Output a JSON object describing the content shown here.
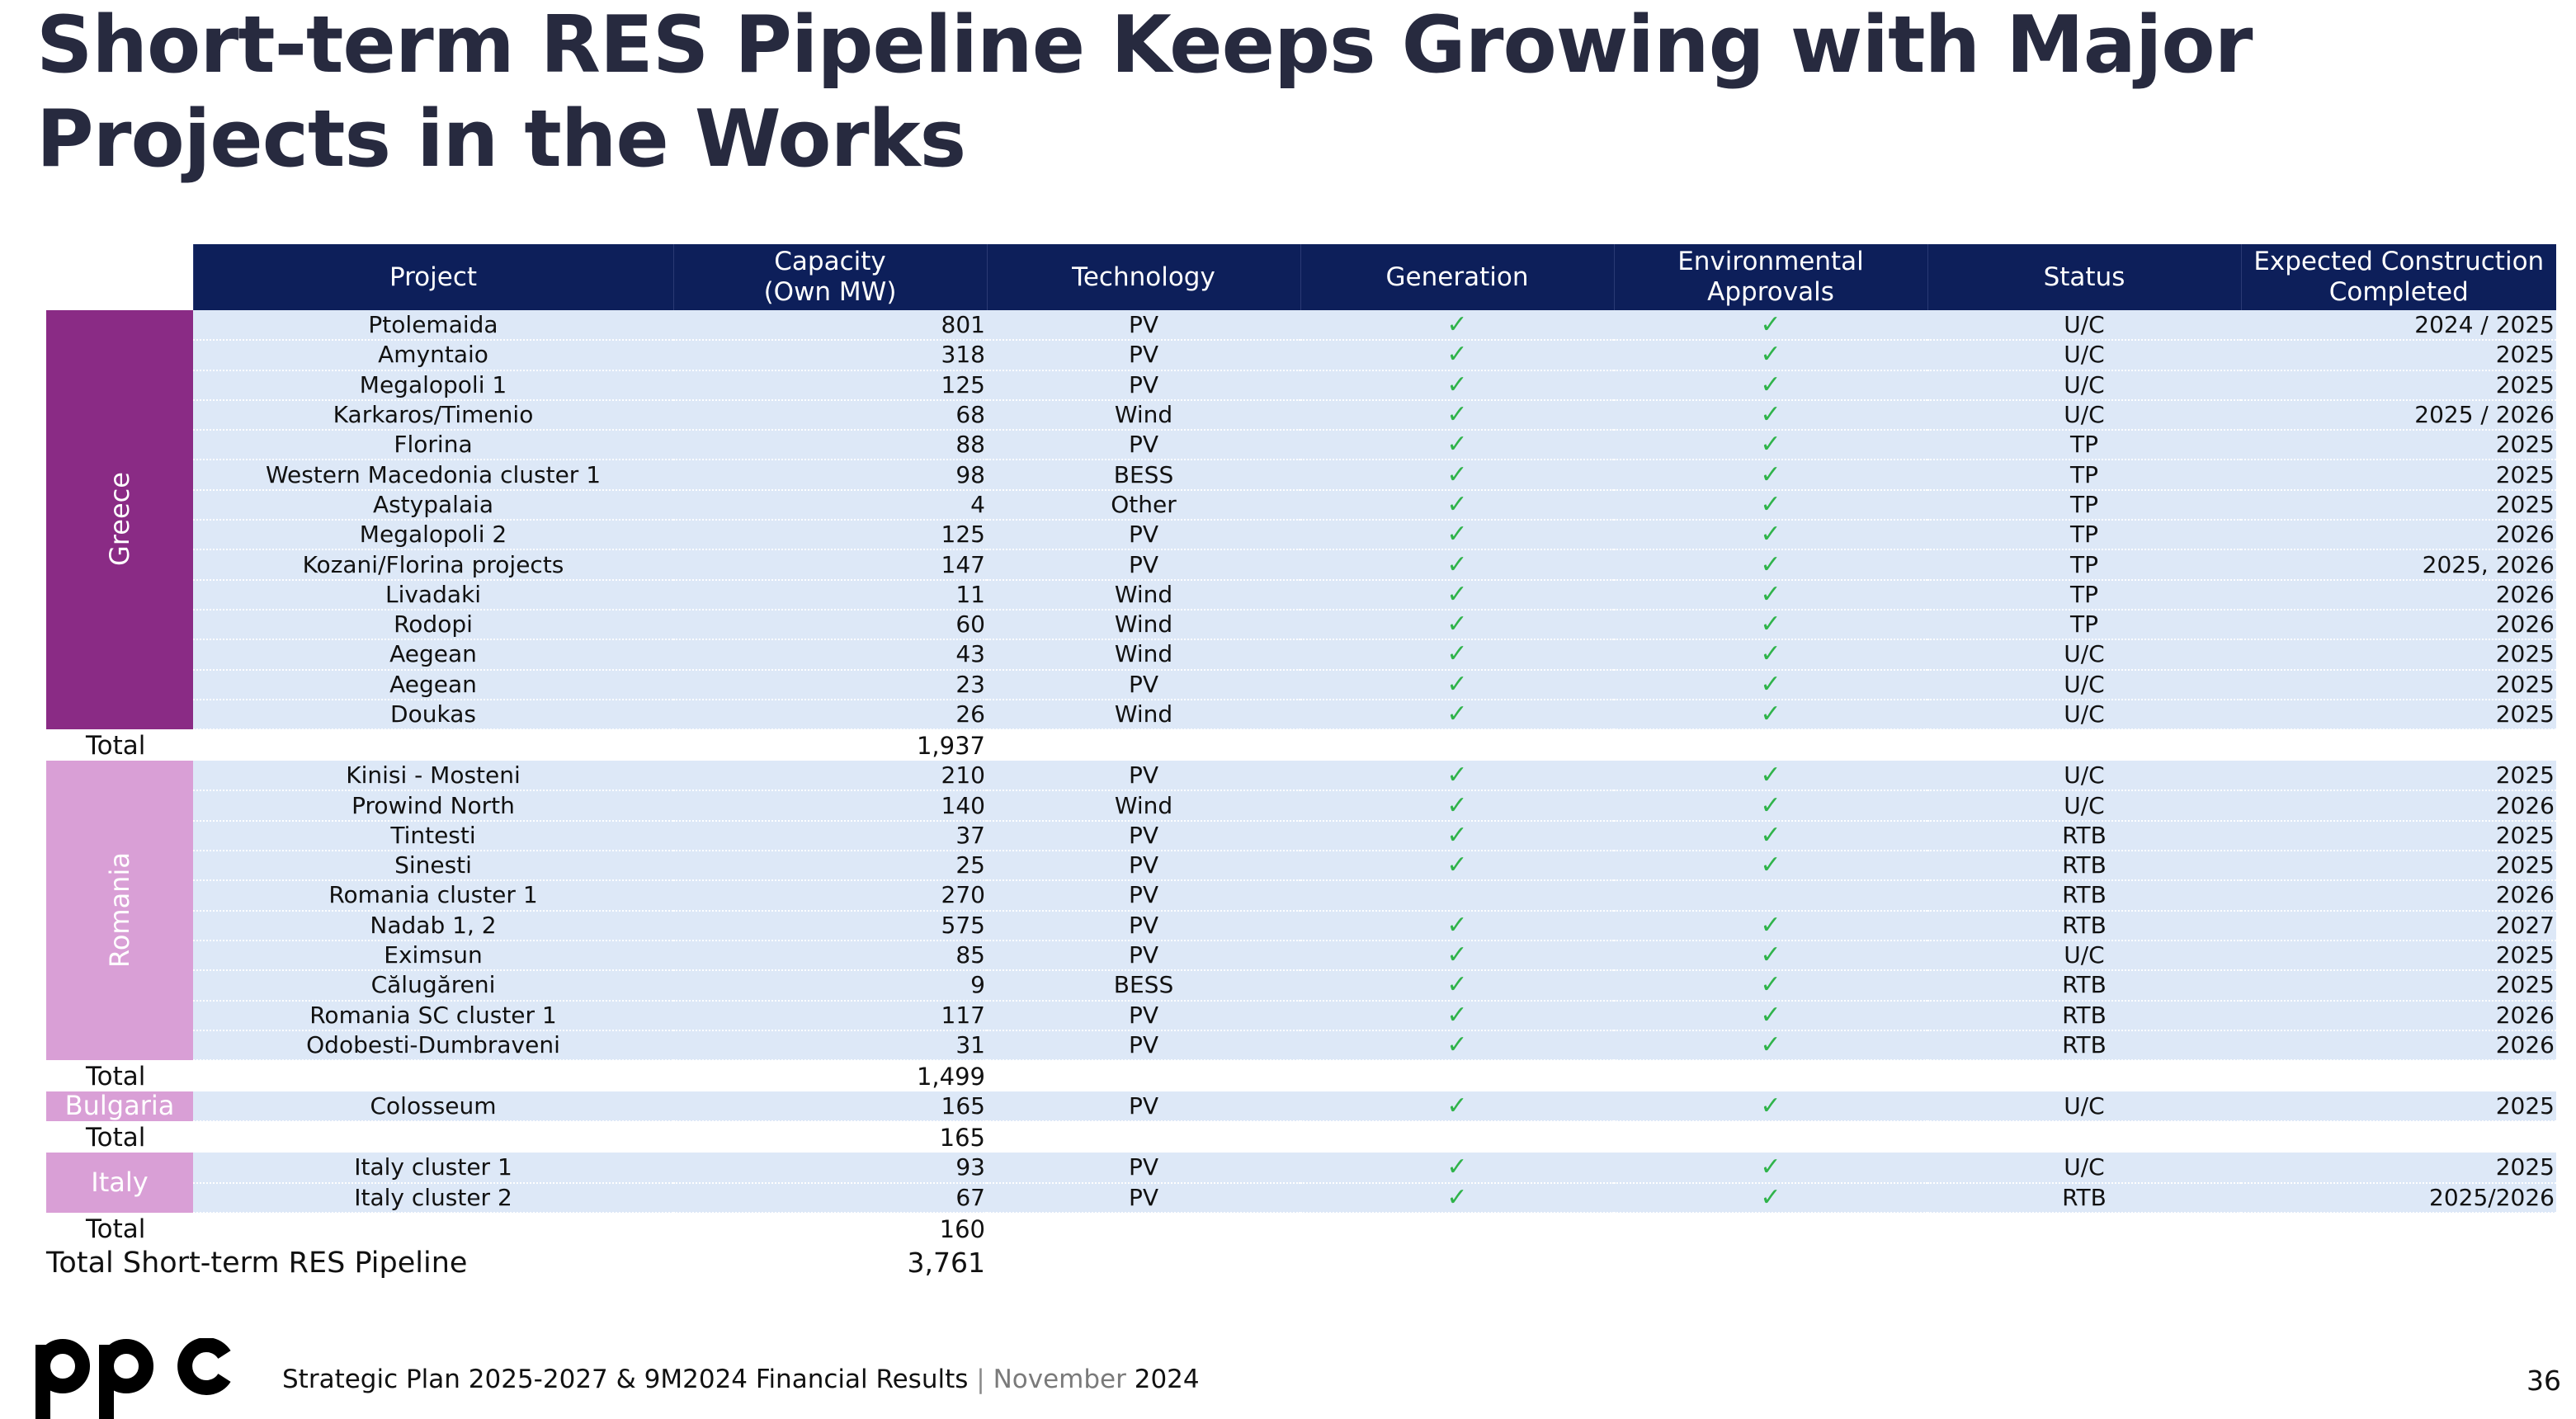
{
  "title": "Short-term RES Pipeline Keeps Growing with Major Projects in the Works",
  "columns": {
    "project": "Project",
    "capacity_line1": "Capacity",
    "capacity_line2": "(Own MW)",
    "technology": "Technology",
    "generation": "Generation",
    "environmental_line1": "Environmental",
    "environmental_line2": "Approvals",
    "status": "Status",
    "expected_line1": "Expected Construction",
    "expected_line2": "Completed"
  },
  "check_symbol": "✓",
  "colors": {
    "header_bg": "#0d1f5a",
    "greece": "#8a2b85",
    "other_regions": "#d99fd6",
    "row_bg": "#dde8f7",
    "check": "#2fb34a"
  },
  "regions": [
    {
      "name": "Greece",
      "total_label": "Total",
      "total": "1,937",
      "rows": [
        {
          "project": "Ptolemaida",
          "capacity": "801",
          "technology": "PV",
          "generation": true,
          "environmental": true,
          "status": "U/C",
          "expected": "2024 / 2025"
        },
        {
          "project": "Amyntaio",
          "capacity": "318",
          "technology": "PV",
          "generation": true,
          "environmental": true,
          "status": "U/C",
          "expected": "2025"
        },
        {
          "project": "Megalopoli 1",
          "capacity": "125",
          "technology": "PV",
          "generation": true,
          "environmental": true,
          "status": "U/C",
          "expected": "2025"
        },
        {
          "project": "Karkaros/Timenio",
          "capacity": "68",
          "technology": "Wind",
          "generation": true,
          "environmental": true,
          "status": "U/C",
          "expected": "2025 / 2026"
        },
        {
          "project": "Florina",
          "capacity": "88",
          "technology": "PV",
          "generation": true,
          "environmental": true,
          "status": "TP",
          "expected": "2025"
        },
        {
          "project": "Western Macedonia cluster 1",
          "capacity": "98",
          "technology": "BESS",
          "generation": true,
          "environmental": true,
          "status": "TP",
          "expected": "2025"
        },
        {
          "project": "Astypalaia",
          "capacity": "4",
          "technology": "Other",
          "generation": true,
          "environmental": true,
          "status": "TP",
          "expected": "2025"
        },
        {
          "project": "Megalopoli 2",
          "capacity": "125",
          "technology": "PV",
          "generation": true,
          "environmental": true,
          "status": "TP",
          "expected": "2026"
        },
        {
          "project": "Kozani/Florina projects",
          "capacity": "147",
          "technology": "PV",
          "generation": true,
          "environmental": true,
          "status": "TP",
          "expected": "2025, 2026"
        },
        {
          "project": "Livadaki",
          "capacity": "11",
          "technology": "Wind",
          "generation": true,
          "environmental": true,
          "status": "TP",
          "expected": "2026"
        },
        {
          "project": "Rodopi",
          "capacity": "60",
          "technology": "Wind",
          "generation": true,
          "environmental": true,
          "status": "TP",
          "expected": "2026"
        },
        {
          "project": "Aegean",
          "capacity": "43",
          "technology": "Wind",
          "generation": true,
          "environmental": true,
          "status": "U/C",
          "expected": "2025"
        },
        {
          "project": "Aegean",
          "capacity": "23",
          "technology": "PV",
          "generation": true,
          "environmental": true,
          "status": "U/C",
          "expected": "2025"
        },
        {
          "project": "Doukas",
          "capacity": "26",
          "technology": "Wind",
          "generation": true,
          "environmental": true,
          "status": "U/C",
          "expected": "2025"
        }
      ]
    },
    {
      "name": "Romania",
      "total_label": "Total",
      "total": "1,499",
      "rows": [
        {
          "project": "Kinisi - Mosteni",
          "capacity": "210",
          "technology": "PV",
          "generation": true,
          "environmental": true,
          "status": "U/C",
          "expected": "2025"
        },
        {
          "project": "Prowind North",
          "capacity": "140",
          "technology": "Wind",
          "generation": true,
          "environmental": true,
          "status": "U/C",
          "expected": "2026"
        },
        {
          "project": "Tintesti",
          "capacity": "37",
          "technology": "PV",
          "generation": true,
          "environmental": true,
          "status": "RTB",
          "expected": "2025"
        },
        {
          "project": "Sinesti",
          "capacity": "25",
          "technology": "PV",
          "generation": true,
          "environmental": true,
          "status": "RTB",
          "expected": "2025"
        },
        {
          "project": "Romania cluster 1",
          "capacity": "270",
          "technology": "PV",
          "generation": false,
          "environmental": false,
          "status": "RTB",
          "expected": "2026"
        },
        {
          "project": "Nadab 1, 2",
          "capacity": "575",
          "technology": "PV",
          "generation": true,
          "environmental": true,
          "status": "RTB",
          "expected": "2027"
        },
        {
          "project": "Eximsun",
          "capacity": "85",
          "technology": "PV",
          "generation": true,
          "environmental": true,
          "status": "U/C",
          "expected": "2025"
        },
        {
          "project": "Călugăreni",
          "capacity": "9",
          "technology": "BESS",
          "generation": true,
          "environmental": true,
          "status": "RTB",
          "expected": "2025"
        },
        {
          "project": "Romania SC cluster 1",
          "capacity": "117",
          "technology": "PV",
          "generation": true,
          "environmental": true,
          "status": "RTB",
          "expected": "2026"
        },
        {
          "project": "Odobesti-Dumbraveni",
          "capacity": "31",
          "technology": "PV",
          "generation": true,
          "environmental": true,
          "status": "RTB",
          "expected": "2026"
        }
      ]
    },
    {
      "name": "Bulgaria",
      "total_label": "Total",
      "total": "165",
      "rows": [
        {
          "project": "Colosseum",
          "capacity": "165",
          "technology": "PV",
          "generation": true,
          "environmental": true,
          "status": "U/C",
          "expected": "2025"
        }
      ]
    },
    {
      "name": "Italy",
      "total_label": "Total",
      "total": "160",
      "rows": [
        {
          "project": "Italy cluster 1",
          "capacity": "93",
          "technology": "PV",
          "generation": true,
          "environmental": true,
          "status": "U/C",
          "expected": "2025"
        },
        {
          "project": "Italy cluster 2",
          "capacity": "67",
          "technology": "PV",
          "generation": true,
          "environmental": true,
          "status": "RTB",
          "expected": "2025/2026"
        }
      ]
    }
  ],
  "grand_total": {
    "label": "Total Short-term RES Pipeline",
    "value": "3,761"
  },
  "footer": {
    "logo_text": "ppc",
    "text": "Strategic Plan 2025-2027 & 9M2024 Financial Results",
    "separator": "|",
    "month": "November",
    "year": "2024",
    "page_number": "36"
  }
}
